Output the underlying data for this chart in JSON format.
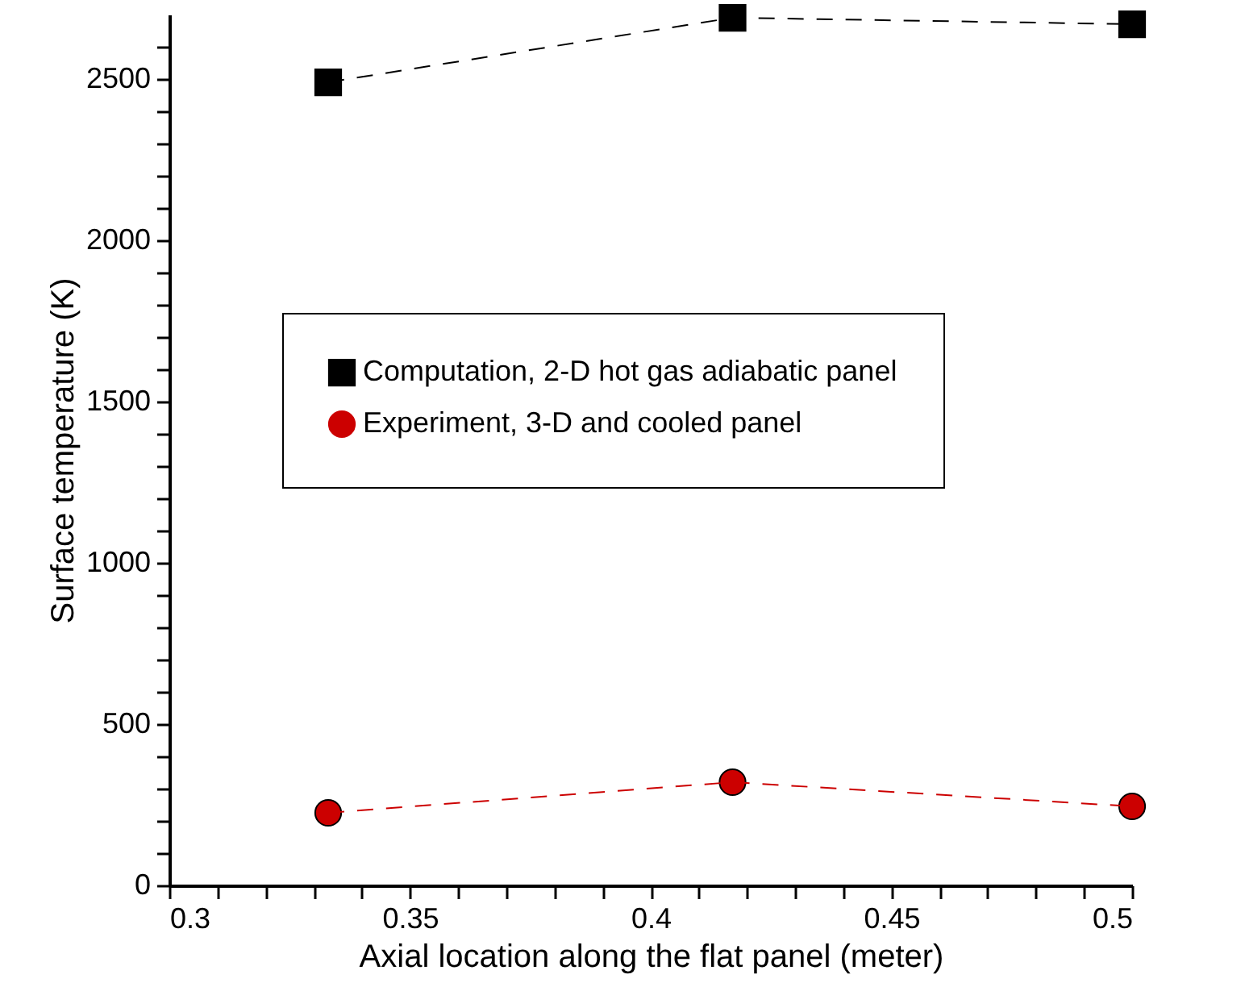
{
  "chart_data": {
    "type": "line",
    "xlabel": "Axial location along the flat panel (meter)",
    "ylabel": "Surface temperature (K)",
    "x": [
      0.333,
      0.417,
      0.5
    ],
    "series": [
      {
        "name": "Computation, 2-D hot gas adiabatic panel",
        "color": "#000000",
        "marker": "square",
        "values": [
          2490,
          2690,
          2670
        ]
      },
      {
        "name": "Experiment, 3-D and cooled panel",
        "color": "#cc0000",
        "marker": "circle",
        "values": [
          225,
          320,
          245
        ]
      }
    ],
    "xlim": [
      0.3,
      0.5
    ],
    "xticks": [
      0.3,
      {
        "value": 0.31,
        "label": null
      },
      {
        "value": 0.32,
        "label": null
      },
      {
        "value": 0.33,
        "label": null
      },
      {
        "value": 0.34,
        "label": null
      },
      0.35,
      {
        "value": 0.36,
        "label": null
      },
      {
        "value": 0.37,
        "label": null
      },
      {
        "value": 0.38,
        "label": null
      },
      {
        "value": 0.39,
        "label": null
      },
      0.4,
      {
        "value": 0.41,
        "label": null
      },
      {
        "value": 0.42,
        "label": null
      },
      {
        "value": 0.43,
        "label": null
      },
      {
        "value": 0.44,
        "label": null
      },
      0.45,
      {
        "value": 0.46,
        "label": null
      },
      {
        "value": 0.47,
        "label": null
      },
      {
        "value": 0.48,
        "label": null
      },
      {
        "value": 0.49,
        "label": null
      },
      0.5
    ],
    "ylim": [
      0,
      2700
    ],
    "yticks": [
      0,
      {
        "value": 100,
        "label": null
      },
      {
        "value": 200,
        "label": null
      },
      {
        "value": 300,
        "label": null
      },
      {
        "value": 400,
        "label": null
      },
      500,
      {
        "value": 600,
        "label": null
      },
      {
        "value": 700,
        "label": null
      },
      {
        "value": 800,
        "label": null
      },
      {
        "value": 900,
        "label": null
      },
      1000,
      {
        "value": 1100,
        "label": null
      },
      {
        "value": 1200,
        "label": null
      },
      {
        "value": 1300,
        "label": null
      },
      {
        "value": 1400,
        "label": null
      },
      1500,
      {
        "value": 1600,
        "label": null
      },
      {
        "value": 1700,
        "label": null
      },
      {
        "value": 1800,
        "label": null
      },
      {
        "value": 1900,
        "label": null
      },
      2000,
      {
        "value": 2100,
        "label": null
      },
      {
        "value": 2200,
        "label": null
      },
      {
        "value": 2300,
        "label": null
      },
      {
        "value": 2400,
        "label": null
      },
      2500,
      {
        "value": 2600,
        "label": null
      }
    ],
    "grid": false,
    "legend": "center",
    "line_style": "dashed"
  }
}
